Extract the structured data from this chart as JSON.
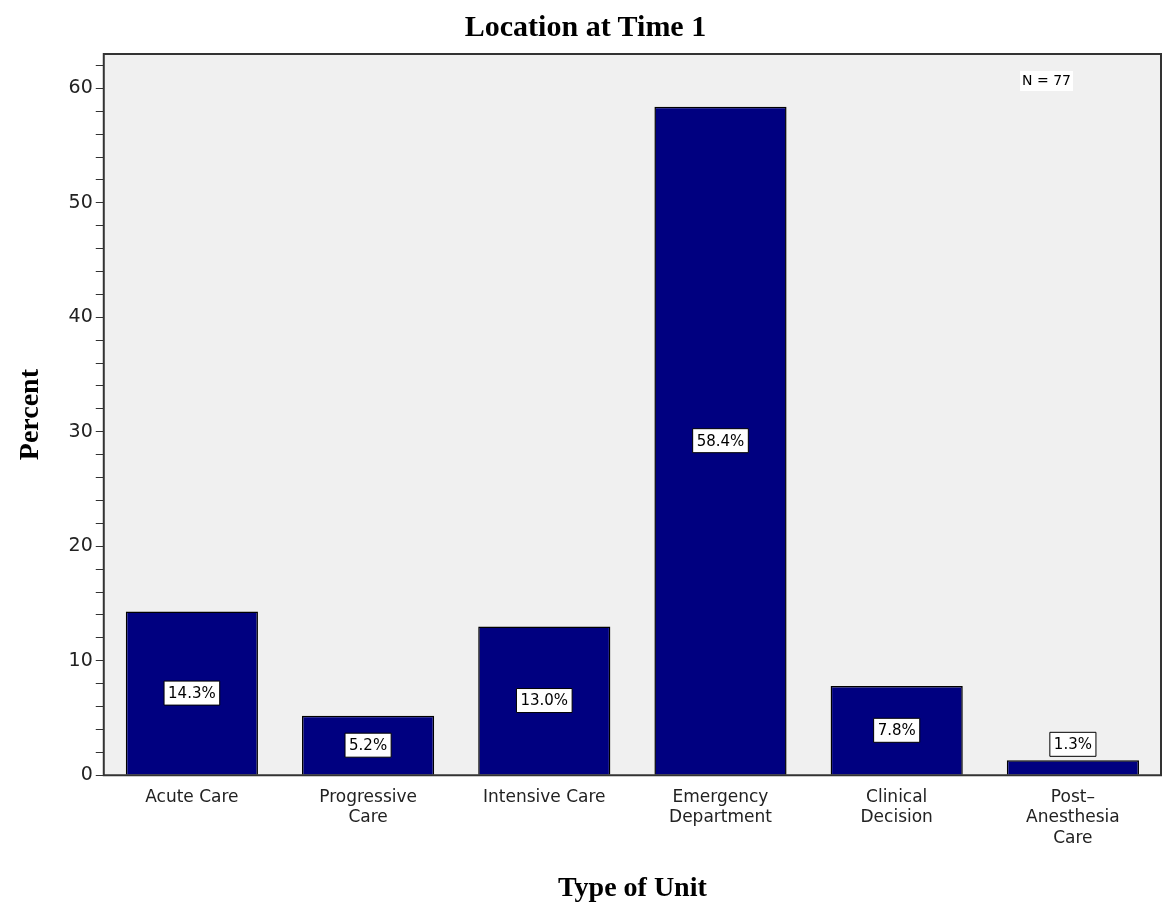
{
  "chart_data": {
    "type": "bar",
    "title": "Location at Time 1",
    "xlabel": "Type of Unit",
    "ylabel": "Percent",
    "categories": [
      "Acute Care",
      "Progressive\nCare",
      "Intensive Care",
      "Emergency\nDepartment",
      "Clinical\nDecision",
      "Post–\nAnesthesia\nCare"
    ],
    "values": [
      14.3,
      5.2,
      13.0,
      58.4,
      7.8,
      1.3
    ],
    "value_labels": [
      "14.3%",
      "5.2%",
      "13.0%",
      "58.4%",
      "7.8%",
      "1.3%"
    ],
    "color": "#000080",
    "ylim": [
      0,
      63
    ],
    "yticks": [
      0,
      {
        "value": 2,
        "label": null
      },
      {
        "value": 4,
        "label": null
      },
      {
        "value": 6,
        "label": null
      },
      {
        "value": 8,
        "label": null
      },
      10,
      {
        "value": 12,
        "label": null
      },
      {
        "value": 14,
        "label": null
      },
      {
        "value": 16,
        "label": null
      },
      {
        "value": 18,
        "label": null
      },
      20,
      {
        "value": 22,
        "label": null
      },
      {
        "value": 24,
        "label": null
      },
      {
        "value": 26,
        "label": null
      },
      {
        "value": 28,
        "label": null
      },
      30,
      {
        "value": 32,
        "label": null
      },
      {
        "value": 34,
        "label": null
      },
      {
        "value": 36,
        "label": null
      },
      {
        "value": 38,
        "label": null
      },
      40,
      {
        "value": 42,
        "label": null
      },
      {
        "value": 44,
        "label": null
      },
      {
        "value": 46,
        "label": null
      },
      {
        "value": 48,
        "label": null
      },
      50,
      {
        "value": 52,
        "label": null
      },
      {
        "value": 54,
        "label": null
      },
      {
        "value": 56,
        "label": null
      },
      {
        "value": 58,
        "label": null
      },
      60,
      {
        "value": 62,
        "label": null
      }
    ],
    "annotations": [
      "N = 77"
    ],
    "grid": false,
    "legend": false
  }
}
